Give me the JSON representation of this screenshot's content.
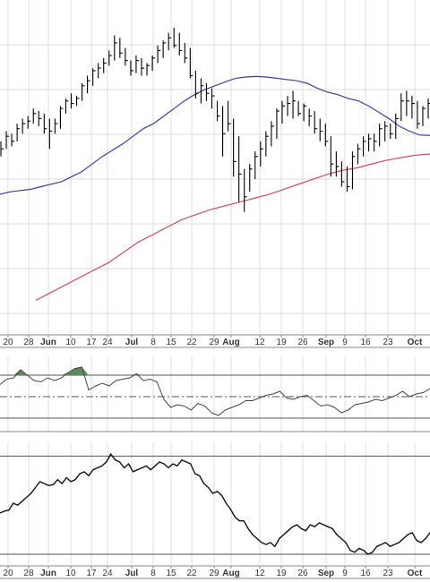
{
  "chart_data": {
    "type": "ohlc",
    "title": "",
    "xaxis": {
      "ticks": [
        "20",
        "28",
        "Jun",
        "10",
        "17",
        "24",
        "Jul",
        "8",
        "15",
        "22",
        "29",
        "Aug",
        "12",
        "19",
        "26",
        "Sep",
        "9",
        "16",
        "23",
        "Oct"
      ],
      "bold_ticks": [
        "Jun",
        "Jul",
        "Aug",
        "Sep",
        "Oct"
      ]
    },
    "price": {
      "bars": [
        [
          124,
          118,
          121
        ],
        [
          128,
          121,
          126
        ],
        [
          127,
          122,
          124
        ],
        [
          131,
          124,
          129
        ],
        [
          133,
          127,
          131
        ],
        [
          134,
          129,
          132
        ],
        [
          137,
          131,
          135
        ],
        [
          136,
          130,
          133
        ],
        [
          135,
          127,
          129
        ],
        [
          133,
          121,
          128
        ],
        [
          133,
          127,
          131
        ],
        [
          138,
          129,
          137
        ],
        [
          141,
          135,
          140
        ],
        [
          143,
          137,
          139
        ],
        [
          142,
          138,
          141
        ],
        [
          147,
          140,
          146
        ],
        [
          150,
          143,
          148
        ],
        [
          153,
          146,
          152
        ],
        [
          155,
          149,
          153
        ],
        [
          157,
          151,
          155
        ],
        [
          160,
          154,
          158
        ],
        [
          166,
          156,
          163
        ],
        [
          165,
          157,
          159
        ],
        [
          161,
          154,
          156
        ],
        [
          156,
          150,
          152
        ],
        [
          158,
          151,
          156
        ],
        [
          157,
          150,
          153
        ],
        [
          155,
          150,
          154
        ],
        [
          158,
          152,
          157
        ],
        [
          162,
          155,
          160
        ],
        [
          164,
          157,
          163
        ],
        [
          167,
          160,
          165
        ],
        [
          169,
          161,
          162
        ],
        [
          167,
          158,
          160
        ],
        [
          163,
          155,
          157
        ],
        [
          161,
          149,
          150
        ],
        [
          152,
          141,
          143
        ],
        [
          149,
          139,
          146
        ],
        [
          147,
          140,
          143
        ],
        [
          145,
          137,
          142
        ],
        [
          140,
          132,
          134
        ],
        [
          138,
          118,
          127
        ],
        [
          140,
          128,
          131
        ],
        [
          133,
          110,
          116
        ],
        [
          126,
          100,
          111
        ],
        [
          113,
          96,
          102
        ],
        [
          115,
          104,
          113
        ],
        [
          120,
          109,
          118
        ],
        [
          124,
          114,
          121
        ],
        [
          128,
          118,
          126
        ],
        [
          132,
          122,
          130
        ],
        [
          137,
          125,
          136
        ],
        [
          140,
          131,
          138
        ],
        [
          142,
          134,
          139
        ],
        [
          144,
          133,
          140
        ],
        [
          140,
          134,
          135
        ],
        [
          139,
          132,
          138
        ],
        [
          137,
          130,
          134
        ],
        [
          136,
          127,
          129
        ],
        [
          133,
          124,
          128
        ],
        [
          131,
          122,
          124
        ],
        [
          126,
          110,
          115
        ],
        [
          120,
          110,
          114
        ],
        [
          116,
          106,
          108
        ],
        [
          114,
          104,
          106
        ],
        [
          120,
          105,
          118
        ],
        [
          123,
          115,
          121
        ],
        [
          126,
          118,
          124
        ],
        [
          127,
          120,
          125
        ],
        [
          127,
          120,
          124
        ],
        [
          131,
          122,
          129
        ],
        [
          132,
          124,
          130
        ],
        [
          131,
          125,
          127
        ],
        [
          135,
          125,
          133
        ],
        [
          143,
          132,
          140
        ],
        [
          144,
          134,
          140
        ],
        [
          142,
          133,
          139
        ],
        [
          140,
          129,
          131
        ],
        [
          138,
          130,
          137
        ],
        [
          141,
          133,
          139
        ]
      ],
      "sma_short": [
        103,
        104,
        104.5,
        105,
        106,
        107,
        108,
        110,
        112,
        115,
        118,
        120.5,
        123,
        126,
        129,
        131,
        134,
        137,
        140,
        142.5,
        144.5,
        146,
        147.5,
        149,
        149.5,
        149.7,
        149.5,
        149,
        148.5,
        148,
        147,
        145,
        143.5,
        142.5,
        141,
        140,
        138,
        135.5,
        133,
        130,
        128,
        126.5,
        126.3
      ],
      "sma_long": [
        61,
        64,
        67,
        70,
        73,
        76,
        80,
        84,
        87,
        90,
        93,
        95,
        97,
        98.5,
        100,
        101.5,
        103,
        105,
        107,
        109,
        111,
        112.5,
        113.5,
        115,
        116.5,
        117.5,
        118.5,
        119
      ]
    },
    "indicator1": {
      "values": [
        59,
        63,
        64,
        70,
        66,
        62,
        61,
        64,
        62,
        64,
        68,
        71,
        72,
        55,
        58,
        60,
        58,
        62,
        63,
        64,
        67,
        62,
        63,
        61,
        48,
        42,
        44,
        43,
        40,
        45,
        43,
        38,
        36,
        40,
        42,
        44,
        47,
        47,
        49,
        51,
        52,
        54,
        49,
        48,
        50,
        51,
        47,
        43,
        44,
        42,
        38,
        40,
        44,
        45,
        46,
        48,
        47,
        49,
        51,
        54,
        50,
        52,
        53,
        56
      ],
      "upper_line": 66,
      "center_line": 50,
      "lower_line": 34
    },
    "indicator2": {
      "values": [
        2,
        4,
        5,
        12,
        10,
        14,
        18,
        22,
        28,
        34,
        32,
        30,
        31,
        36,
        32,
        38,
        34,
        36,
        42,
        44,
        40,
        46,
        48,
        50,
        54,
        62,
        56,
        54,
        48,
        52,
        44,
        46,
        48,
        50,
        46,
        50,
        54,
        52,
        48,
        52,
        50,
        56,
        54,
        52,
        42,
        40,
        32,
        28,
        22,
        24,
        20,
        12,
        6,
        -2,
        -6,
        -6,
        -14,
        -20,
        -24,
        -28,
        -30,
        -28,
        -32,
        -24,
        -20,
        -16,
        -12,
        -10,
        -14,
        -16,
        -10,
        -12,
        -8,
        -10,
        -12,
        -14,
        -20,
        -24,
        -28,
        -36,
        -38,
        -34,
        -36,
        -40,
        -38,
        -32,
        -30,
        -28,
        -32,
        -30,
        -28,
        -24,
        -20,
        -18,
        -26,
        -28,
        -24,
        -18
      ],
      "reference_lines": [
        60,
        -40
      ]
    }
  }
}
